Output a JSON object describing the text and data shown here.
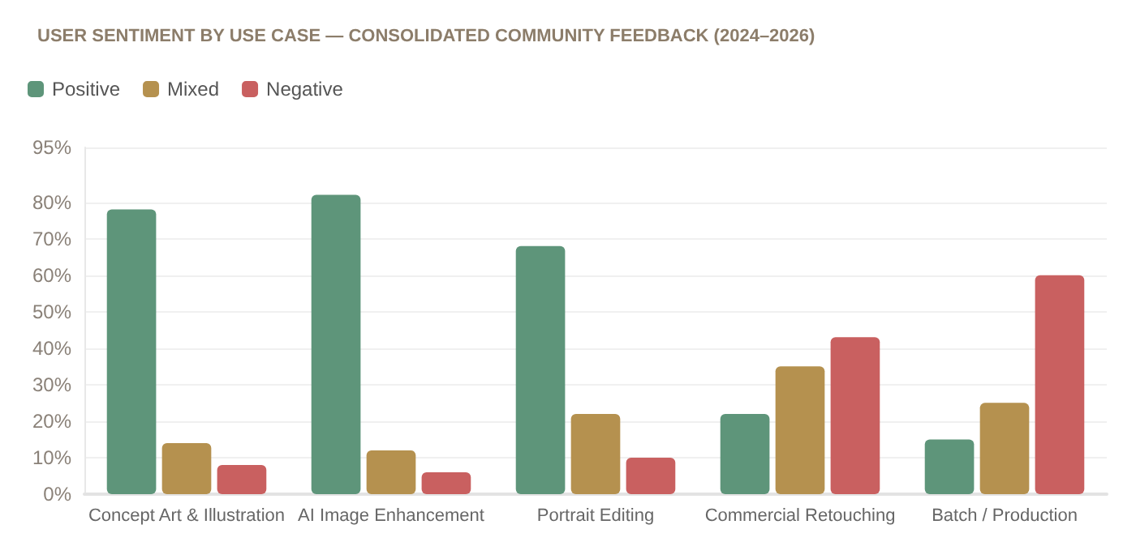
{
  "chart_data": {
    "type": "bar",
    "title": "USER SENTIMENT BY USE CASE — CONSOLIDATED COMMUNITY FEEDBACK (2024–2026)",
    "categories": [
      "Concept Art & Illustration",
      "AI Image Enhancement",
      "Portrait Editing",
      "Commercial Retouching",
      "Batch / Production"
    ],
    "series": [
      {
        "name": "Positive",
        "color": "#5e957a",
        "values": [
          78,
          82,
          68,
          22,
          15
        ]
      },
      {
        "name": "Mixed",
        "color": "#b5914f",
        "values": [
          14,
          12,
          22,
          35,
          25
        ]
      },
      {
        "name": "Negative",
        "color": "#c96060",
        "values": [
          8,
          6,
          10,
          43,
          60
        ]
      }
    ],
    "ylim": [
      0,
      95
    ],
    "yticks": [
      {
        "value": 0,
        "label": "0%"
      },
      {
        "value": 10,
        "label": "10%"
      },
      {
        "value": 20,
        "label": "20%"
      },
      {
        "value": 30,
        "label": "30%"
      },
      {
        "value": 40,
        "label": "40%"
      },
      {
        "value": 50,
        "label": "50%"
      },
      {
        "value": 60,
        "label": "60%"
      },
      {
        "value": 70,
        "label": "70%"
      },
      {
        "value": 80,
        "label": "80%"
      },
      {
        "value": 95,
        "label": "95%"
      }
    ],
    "grid": "y",
    "legend": "top left"
  }
}
